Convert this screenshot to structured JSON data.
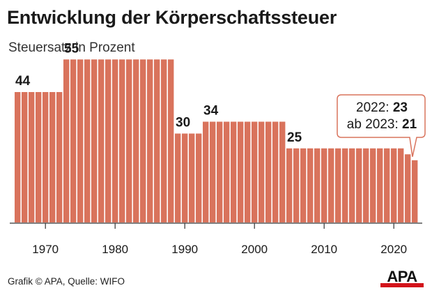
{
  "title": "Entwicklung der Körperschaftssteuer",
  "subtitle": "Steuersatz in Prozent",
  "footer": "Grafik © APA, Quelle: WIFO",
  "logo": "APA",
  "colors": {
    "bar": "#d9735c",
    "logo_bar": "#d3131a",
    "callout_border": "#d9735c"
  },
  "callout": {
    "line1_label": "2022: ",
    "line1_value": "23",
    "line2_label": "ab 2023: ",
    "line2_value": "21"
  },
  "chart_data": {
    "type": "bar",
    "title": "Entwicklung der Körperschaftssteuer",
    "subtitle": "Steuersatz in Prozent",
    "xlabel": "",
    "ylabel": "",
    "x": [
      1966,
      1967,
      1968,
      1969,
      1970,
      1971,
      1972,
      1973,
      1974,
      1975,
      1976,
      1977,
      1978,
      1979,
      1980,
      1981,
      1982,
      1983,
      1984,
      1985,
      1986,
      1987,
      1988,
      1989,
      1990,
      1991,
      1992,
      1993,
      1994,
      1995,
      1996,
      1997,
      1998,
      1999,
      2000,
      2001,
      2002,
      2003,
      2004,
      2005,
      2006,
      2007,
      2008,
      2009,
      2010,
      2011,
      2012,
      2013,
      2014,
      2015,
      2016,
      2017,
      2018,
      2019,
      2020,
      2021,
      2022,
      2023
    ],
    "values": [
      44,
      44,
      44,
      44,
      44,
      44,
      44,
      55,
      55,
      55,
      55,
      55,
      55,
      55,
      55,
      55,
      55,
      55,
      55,
      55,
      55,
      55,
      55,
      30,
      30,
      30,
      30,
      34,
      34,
      34,
      34,
      34,
      34,
      34,
      34,
      34,
      34,
      34,
      34,
      25,
      25,
      25,
      25,
      25,
      25,
      25,
      25,
      25,
      25,
      25,
      25,
      25,
      25,
      25,
      25,
      25,
      23,
      21
    ],
    "xticks": [
      1970,
      1980,
      1990,
      2000,
      2010,
      2020
    ],
    "ylim": [
      0,
      60
    ],
    "grid": false,
    "data_labels": [
      {
        "x": 1966,
        "text": "44"
      },
      {
        "x": 1973,
        "text": "55"
      },
      {
        "x": 1989,
        "text": "30"
      },
      {
        "x": 1993,
        "text": "34"
      },
      {
        "x": 2005,
        "text": "25"
      }
    ]
  }
}
